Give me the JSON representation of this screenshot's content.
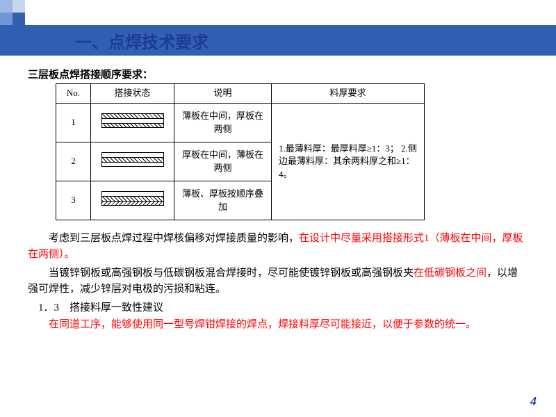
{
  "corner": {
    "colors": [
      "#9db8e6",
      "#c6d6f0",
      "#6f97d6",
      "#3160b0"
    ]
  },
  "titleBar": {
    "bg": "#3160b0",
    "text": "一、点焊技术要求"
  },
  "subtitle": "三层板点焊搭接顺序要求：",
  "table": {
    "headers": [
      "No.",
      "搭接状态",
      "说明",
      "料厚要求"
    ],
    "rows": [
      {
        "no": "1",
        "desc": "薄板在中间，厚板在两侧",
        "layers": [
          "hatch",
          "thin",
          "hatch"
        ]
      },
      {
        "no": "2",
        "desc": "厚板在中间，薄板在两侧",
        "layers": [
          "thin",
          "hatch",
          "thin"
        ]
      },
      {
        "no": "3",
        "desc": "薄板、厚板按顺序叠加",
        "layers": [
          "thin",
          "hatch",
          "hatch-rev"
        ]
      }
    ],
    "thickness": "1.最薄料厚：最厚料厚≥1：3；\n2.侧边最薄料厚：其余两料厚之和≥1：4。"
  },
  "para1": {
    "prefix": "　　考虑到三层板点焊过程中焊核偏移对焊接质量的影响，",
    "red": "在设计中尽量采用搭接形式1（薄板在中间，厚板在两侧）。"
  },
  "para2": {
    "prefix": "　　当镀锌钢板或高强钢板与低碳钢板混合焊接时，尽可能使镀锌钢板或高强钢板夹",
    "red": "在低碳钢板之间",
    "suffix": "，以增强可焊性，减少锌层对电极的污损和粘连。"
  },
  "section": "　1．3　搭接料厚一致性建议",
  "para3": "　　在同道工序，能够使用同一型号焊钳焊接的焊点，焊接料厚尽可能接近，以便于参数的统一。",
  "pageNumber": "4"
}
